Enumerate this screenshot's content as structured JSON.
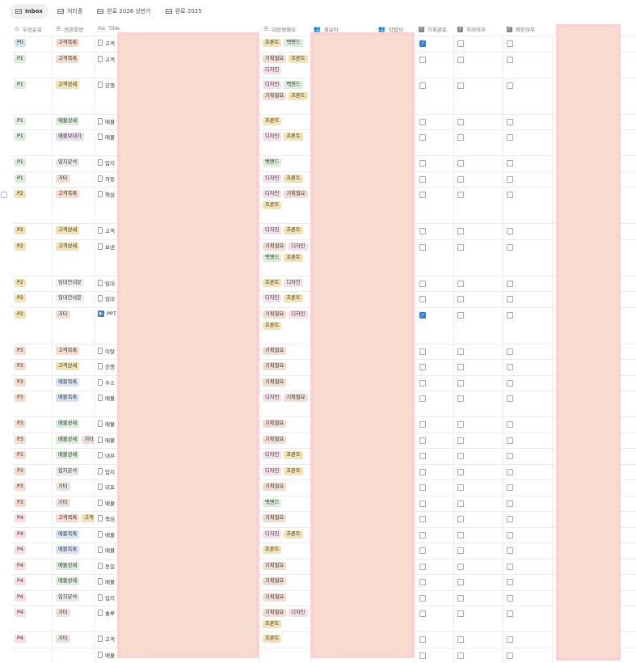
{
  "tabs": [
    {
      "label": "Inbox",
      "active": true
    },
    {
      "label": "처리중"
    },
    {
      "label": "완료 2026 상반기"
    },
    {
      "label": "완료 2025"
    }
  ],
  "columns": {
    "priority": "우선순위",
    "screen": "연관화면",
    "title": "Title",
    "impact": "대응영향도",
    "reporter": "제보자",
    "worker": "작업자",
    "planned": "기획완료",
    "processed": "처리여부",
    "confirmed": "확인여부"
  },
  "colors": {
    "P0": "#d3e5ef",
    "P1": "#dbeddb",
    "P2": "#f3e3b4",
    "P3": "#f5dccf",
    "P4": "#fbdce0",
    "고객목록": "#f5dccf",
    "고객상세": "#f3e3b4",
    "매물상세": "#dbeddb",
    "매물보내기": "#e8deee",
    "입지분석": "#e9e9e7",
    "기타": "#eee0da",
    "임대안내문": "#efefed",
    "매물목록": "#d9e3f7",
    "프론트": "#f3e3b4",
    "백엔드": "#dbeddb",
    "기획필요": "#f2ddd4",
    "디자인": "#f5dfe9"
  },
  "rows": [
    {
      "priority": "P0",
      "screens": [
        "고객목록"
      ],
      "title": "고객",
      "impact": [
        "프론트",
        "백엔드"
      ],
      "planned": true,
      "processed": false,
      "confirmed": false
    },
    {
      "priority": "P1",
      "screens": [
        "고객목록"
      ],
      "title": "고객",
      "impact": [
        "기획필요",
        "프론트",
        "디자인"
      ],
      "planned": false,
      "processed": false,
      "confirmed": false
    },
    {
      "priority": "P1",
      "screens": [
        "고객상세"
      ],
      "title": "진행",
      "impact": [
        "디자인",
        "백엔드",
        "기획필요",
        "프론트"
      ],
      "planned": false,
      "processed": false,
      "confirmed": false
    },
    {
      "priority": "P1",
      "screens": [
        "매물상세"
      ],
      "title": "매물",
      "impact": [
        "프론트"
      ],
      "planned": false,
      "processed": false,
      "confirmed": false
    },
    {
      "priority": "P1",
      "screens": [
        "매물보내기"
      ],
      "title": "매물",
      "impact": [
        "디자인",
        "프론트"
      ],
      "planned": false,
      "processed": false,
      "confirmed": false
    },
    {
      "priority": "P1",
      "screens": [
        "입지분석"
      ],
      "title": "입지",
      "impact": [
        "백엔드"
      ],
      "planned": false,
      "processed": false,
      "confirmed": false
    },
    {
      "priority": "P1",
      "screens": [
        "기타"
      ],
      "title": "자동",
      "impact": [
        "디자인",
        "프론트"
      ],
      "planned": false,
      "processed": false,
      "confirmed": false
    },
    {
      "priority": "P2",
      "screens": [
        "고객목록"
      ],
      "title": "핵심",
      "impact": [
        "디자인",
        "기획필요",
        "프론트"
      ],
      "planned": false,
      "processed": false,
      "confirmed": false
    },
    {
      "priority": "P2",
      "screens": [
        "고객상세"
      ],
      "title": "고객",
      "impact": [
        "디자인",
        "프론트"
      ],
      "planned": false,
      "processed": false,
      "confirmed": false
    },
    {
      "priority": "P2",
      "screens": [
        "고객상세"
      ],
      "title": "보낸",
      "impact": [
        "기획필요",
        "디자인",
        "백엔드",
        "프론트"
      ],
      "planned": false,
      "processed": false,
      "confirmed": false
    },
    {
      "priority": "P2",
      "screens": [
        "임대안내문"
      ],
      "title": "임대",
      "impact": [
        "프론트",
        "디자인"
      ],
      "planned": false,
      "processed": false,
      "confirmed": false
    },
    {
      "priority": "P2",
      "screens": [
        "임대안내문"
      ],
      "title": "임대",
      "impact": [
        "디자인",
        "프론트"
      ],
      "planned": false,
      "processed": false,
      "confirmed": false
    },
    {
      "priority": "P2",
      "screens": [
        "기타"
      ],
      "title": "PPT",
      "icon": "video",
      "impact": [
        "기획필요",
        "디자인",
        "프론트"
      ],
      "planned": true,
      "processed": false,
      "confirmed": false
    },
    {
      "priority": "P3",
      "screens": [
        "고객목록"
      ],
      "title": "이탈",
      "impact": [
        "기획필요"
      ],
      "planned": false,
      "processed": false,
      "confirmed": false
    },
    {
      "priority": "P3",
      "screens": [
        "고객상세"
      ],
      "title": "진행",
      "impact": [
        "기획필요"
      ],
      "planned": false,
      "processed": false,
      "confirmed": false
    },
    {
      "priority": "P3",
      "screens": [
        "매물목록"
      ],
      "title": "주소",
      "impact": [
        "기획필요"
      ],
      "planned": false,
      "processed": false,
      "confirmed": false
    },
    {
      "priority": "P3",
      "screens": [
        "매물목록"
      ],
      "title": "매물",
      "impact": [
        "디자인",
        "기획필요"
      ],
      "planned": false,
      "processed": false,
      "confirmed": false
    },
    {
      "priority": "P3",
      "screens": [
        "매물상세"
      ],
      "title": "매물",
      "impact": [
        "기획필요"
      ],
      "planned": false,
      "processed": false,
      "confirmed": false
    },
    {
      "priority": "P3",
      "screens": [
        "매물상세",
        "기타"
      ],
      "title": "매물",
      "impact": [
        "기획필요"
      ],
      "planned": false,
      "processed": false,
      "confirmed": false
    },
    {
      "priority": "P3",
      "screens": [
        "매물상세"
      ],
      "title": "내부",
      "impact": [
        "디자인",
        "프론트"
      ],
      "planned": false,
      "processed": false,
      "confirmed": false
    },
    {
      "priority": "P3",
      "screens": [
        "입지분석"
      ],
      "title": "입지",
      "impact": [
        "디자인",
        "프론트"
      ],
      "planned": false,
      "processed": false,
      "confirmed": false
    },
    {
      "priority": "P3",
      "screens": [
        "기타"
      ],
      "title": "리포",
      "impact": [
        "기획필요"
      ],
      "planned": false,
      "processed": false,
      "confirmed": false
    },
    {
      "priority": "P3",
      "screens": [
        "기타"
      ],
      "title": "매물",
      "impact": [
        "백엔드"
      ],
      "planned": false,
      "processed": false,
      "confirmed": false
    },
    {
      "priority": "P4",
      "screens": [
        "고객목록",
        "고객상세"
      ],
      "title": "핵심",
      "impact": [
        "기획필요"
      ],
      "planned": false,
      "processed": false,
      "confirmed": false
    },
    {
      "priority": "P4",
      "screens": [
        "매물목록"
      ],
      "title": "매물",
      "impact": [
        "디자인",
        "프론트"
      ],
      "planned": false,
      "processed": false,
      "confirmed": false
    },
    {
      "priority": "P4",
      "screens": [
        "매물목록"
      ],
      "title": "매물",
      "impact": [
        "프론트"
      ],
      "planned": false,
      "processed": false,
      "confirmed": false
    },
    {
      "priority": "P4",
      "screens": [
        "매물상세"
      ],
      "title": "동일",
      "impact": [
        "기획필요"
      ],
      "planned": false,
      "processed": false,
      "confirmed": false
    },
    {
      "priority": "P4",
      "screens": [
        "매물상세"
      ],
      "title": "매물",
      "impact": [
        "기획필요"
      ],
      "planned": false,
      "processed": false,
      "confirmed": false
    },
    {
      "priority": "P4",
      "screens": [
        "입지분석"
      ],
      "title": "입지",
      "impact": [
        "기획필요"
      ],
      "planned": false,
      "processed": false,
      "confirmed": false
    },
    {
      "priority": "P4",
      "screens": [
        "기타"
      ],
      "title": "솔루",
      "impact": [
        "기획필요",
        "디자인",
        "프론트"
      ],
      "planned": false,
      "processed": false,
      "confirmed": false
    },
    {
      "priority": "P4",
      "screens": [
        "기타"
      ],
      "title": "고객",
      "impact": [
        "프론트"
      ],
      "planned": false,
      "processed": false,
      "confirmed": false
    },
    {
      "priority": "",
      "screens": [],
      "title": "매물",
      "impact": [],
      "planned": false,
      "processed": false,
      "confirmed": false
    }
  ]
}
